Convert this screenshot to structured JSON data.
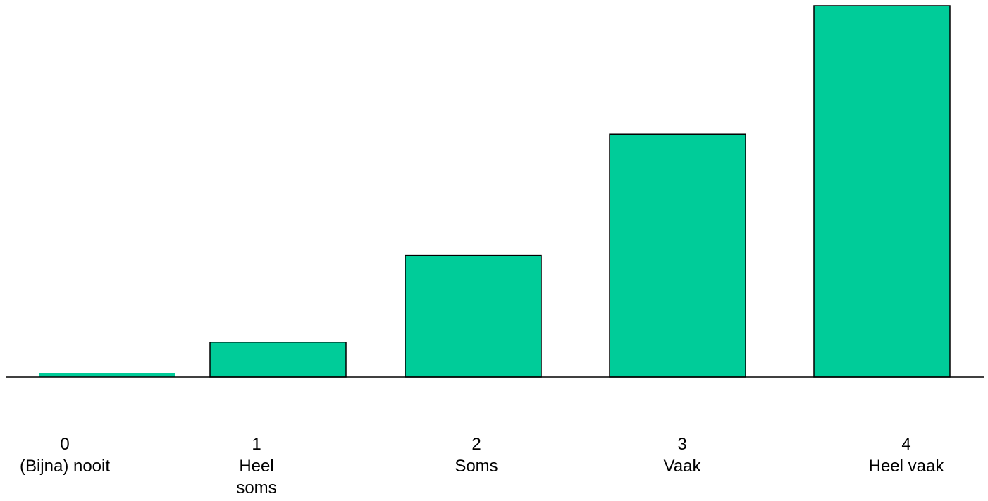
{
  "chart_data": {
    "type": "bar",
    "categories": [
      {
        "code": "0",
        "label": "(Bijna) nooit"
      },
      {
        "code": "1",
        "label": "Heel\nsoms"
      },
      {
        "code": "2",
        "label": "Soms"
      },
      {
        "code": "3",
        "label": "Vaak"
      },
      {
        "code": "4",
        "label": "Heel vaak"
      }
    ],
    "values": [
      0,
      1,
      3.5,
      7,
      10.7
    ],
    "bar_color": "#00CC99",
    "bar_border_color": "#000000",
    "axis_color": "#000000",
    "title": "",
    "xlabel": "",
    "ylabel": "",
    "ylim": [
      0,
      10.7
    ],
    "grid": false,
    "legend": "none"
  }
}
